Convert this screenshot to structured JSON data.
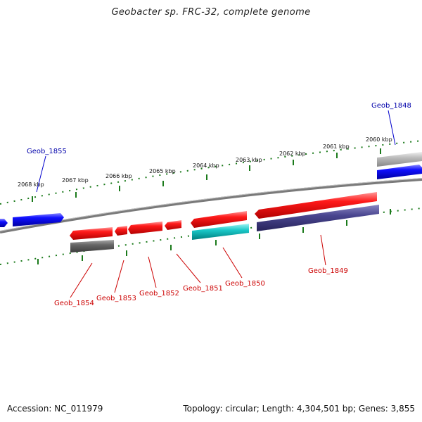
{
  "title": "Geobacter sp. FRC-32, complete genome",
  "footer": {
    "accession": "Accession: NC_011979",
    "stats": "Topology: circular; Length: 4,304,501 bp; Genes: 3,855"
  },
  "colors": {
    "backbone": "#8a8a8a",
    "forward_gene": "#0000ee",
    "reverse_gene": "#ee0000",
    "forward_label": "#0000aa",
    "reverse_label": "#cc0000",
    "tick": "#006600",
    "feature_gray": "#555555",
    "feature_cyan": "#00bbbb",
    "feature_purple": "#3d3a7a",
    "feature_light_gray": "#aaaaaa"
  },
  "ticks": [
    "2060 kbp",
    "2061 kbp",
    "2062 kbp",
    "2063 kbp",
    "2064 kbp",
    "2065 kbp",
    "2066 kbp",
    "2067 kbp",
    "2068 kbp"
  ],
  "genes": [
    {
      "name": "Geob_1848",
      "strand": "forward"
    },
    {
      "name": "Geob_1849",
      "strand": "reverse"
    },
    {
      "name": "Geob_1850",
      "strand": "reverse"
    },
    {
      "name": "Geob_1851",
      "strand": "reverse"
    },
    {
      "name": "Geob_1852",
      "strand": "reverse"
    },
    {
      "name": "Geob_1853",
      "strand": "reverse"
    },
    {
      "name": "Geob_1854",
      "strand": "reverse"
    },
    {
      "name": "Geob_1855",
      "strand": "forward"
    }
  ]
}
